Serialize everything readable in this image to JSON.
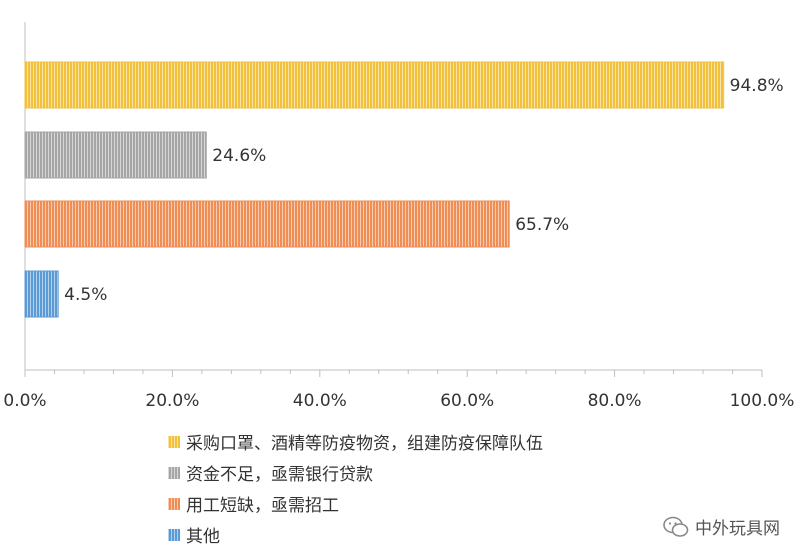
{
  "chart_data": {
    "type": "bar",
    "orientation": "horizontal",
    "categories": [
      "采购口罩、酒精等防疫物资，组建防疫保障队伍",
      "资金不足，亟需银行贷款",
      "用工短缺，亟需招工",
      "其他"
    ],
    "values": [
      94.8,
      24.6,
      65.7,
      4.5
    ],
    "value_labels": [
      "94.8%",
      "24.6%",
      "65.7%",
      "4.5%"
    ],
    "colors": [
      "#F2C13C",
      "#A6A6A6",
      "#EE8E55",
      "#5B9BD5"
    ],
    "xlim": [
      0,
      100
    ],
    "x_ticks": [
      "0.0%",
      "20.0%",
      "40.0%",
      "60.0%",
      "80.0%",
      "100.0%"
    ],
    "grid": false,
    "legend_position": "bottom"
  },
  "legend": {
    "items": [
      "采购口罩、酒精等防疫物资，组建防疫保障队伍",
      "资金不足，亟需银行贷款",
      "用工短缺，亟需招工",
      "其他"
    ]
  },
  "watermark": {
    "text": "中外玩具网"
  }
}
